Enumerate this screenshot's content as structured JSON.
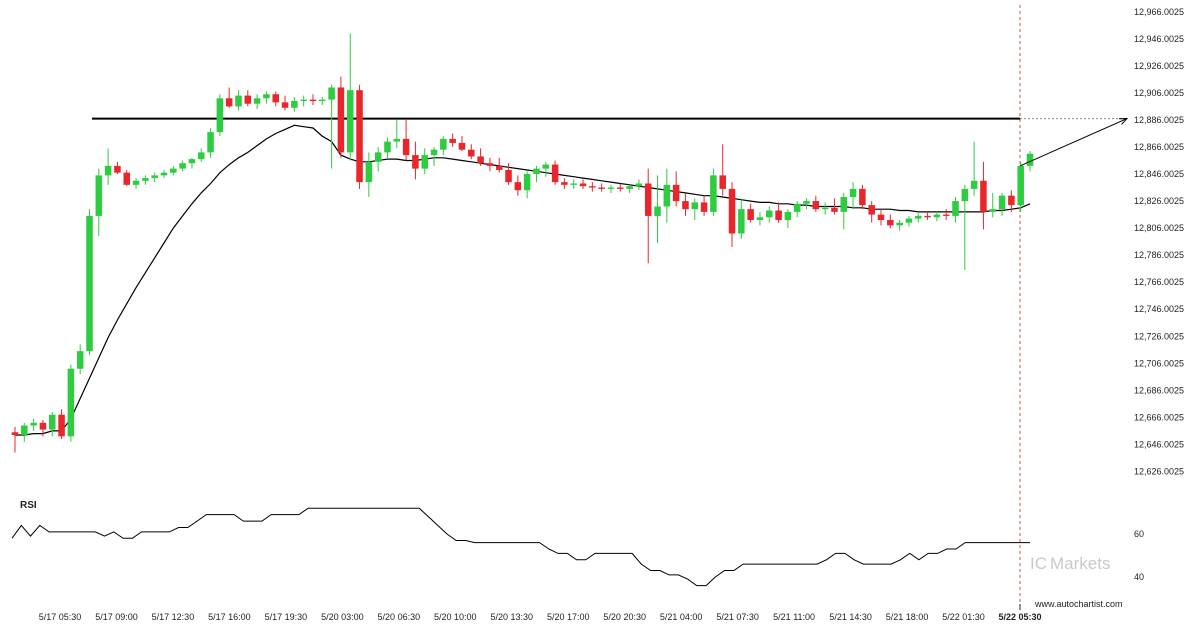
{
  "chart_data": {
    "type": "candlestick",
    "instrument_value_axis": {
      "tick_labels": [
        "12,966.0025",
        "12,946.0025",
        "12,926.0025",
        "12,906.0025",
        "12,886.0025",
        "12,866.0025",
        "12,846.0025",
        "12,826.0025",
        "12,806.0025",
        "12,786.0025",
        "12,766.0025",
        "12,746.0025",
        "12,726.0025",
        "12,706.0025",
        "12,686.0025",
        "12,666.0025",
        "12,646.0025",
        "12,626.0025"
      ],
      "ylim": [
        12616.0025,
        12971.0025
      ]
    },
    "time_axis": {
      "tick_labels": [
        "5/17 05:30",
        "5/17 09:00",
        "5/17 12:30",
        "5/17 16:00",
        "5/17 19:30",
        "5/20 03:00",
        "5/20 06:30",
        "5/20 10:00",
        "5/20 13:30",
        "5/20 17:00",
        "5/20 20:30",
        "5/21 04:00",
        "5/21 07:30",
        "5/21 11:00",
        "5/21 14:30",
        "5/21 18:00",
        "5/22 01:30",
        "5/22 05:30"
      ],
      "last_tick_bold": true
    },
    "resistance_level": 12887,
    "projection": {
      "from": 12852,
      "to": 12887
    },
    "ohlc": [
      [
        12655,
        12659,
        12640,
        12653
      ],
      [
        12653,
        12662,
        12648,
        12660
      ],
      [
        12660,
        12665,
        12656,
        12662
      ],
      [
        12662,
        12664,
        12652,
        12657
      ],
      [
        12657,
        12670,
        12652,
        12668
      ],
      [
        12668,
        12672,
        12650,
        12652
      ],
      [
        12652,
        12705,
        12648,
        12702
      ],
      [
        12702,
        12720,
        12698,
        12715
      ],
      [
        12715,
        12820,
        12712,
        12815
      ],
      [
        12815,
        12850,
        12800,
        12845
      ],
      [
        12845,
        12865,
        12838,
        12852
      ],
      [
        12852,
        12855,
        12846,
        12847
      ],
      [
        12847,
        12849,
        12837,
        12838
      ],
      [
        12838,
        12843,
        12835,
        12841
      ],
      [
        12841,
        12845,
        12838,
        12843
      ],
      [
        12843,
        12847,
        12840,
        12845
      ],
      [
        12845,
        12849,
        12843,
        12847
      ],
      [
        12847,
        12852,
        12845,
        12850
      ],
      [
        12850,
        12856,
        12848,
        12854
      ],
      [
        12854,
        12858,
        12850,
        12857
      ],
      [
        12857,
        12865,
        12855,
        12862
      ],
      [
        12862,
        12880,
        12858,
        12877
      ],
      [
        12877,
        12905,
        12874,
        12902
      ],
      [
        12902,
        12910,
        12895,
        12896
      ],
      [
        12896,
        12908,
        12893,
        12904
      ],
      [
        12904,
        12908,
        12896,
        12898
      ],
      [
        12898,
        12905,
        12894,
        12902
      ],
      [
        12902,
        12907,
        12898,
        12905
      ],
      [
        12905,
        12907,
        12896,
        12899
      ],
      [
        12899,
        12904,
        12893,
        12895
      ],
      [
        12895,
        12903,
        12892,
        12900
      ],
      [
        12900,
        12904,
        12896,
        12901
      ],
      [
        12901,
        12905,
        12897,
        12900
      ],
      [
        12900,
        12903,
        12897,
        12901
      ],
      [
        12901,
        12912,
        12850,
        12910
      ],
      [
        12910,
        12918,
        12858,
        12862
      ],
      [
        12862,
        12950,
        12856,
        12908
      ],
      [
        12908,
        12912,
        12835,
        12840
      ],
      [
        12840,
        12862,
        12829,
        12855
      ],
      [
        12855,
        12866,
        12848,
        12862
      ],
      [
        12862,
        12873,
        12857,
        12870
      ],
      [
        12870,
        12886,
        12865,
        12872
      ],
      [
        12872,
        12886,
        12856,
        12860
      ],
      [
        12860,
        12870,
        12842,
        12850
      ],
      [
        12850,
        12865,
        12846,
        12860
      ],
      [
        12860,
        12866,
        12852,
        12864
      ],
      [
        12864,
        12874,
        12860,
        12872
      ],
      [
        12872,
        12876,
        12866,
        12869
      ],
      [
        12869,
        12874,
        12863,
        12864
      ],
      [
        12864,
        12868,
        12857,
        12859
      ],
      [
        12859,
        12865,
        12852,
        12854
      ],
      [
        12854,
        12858,
        12848,
        12852
      ],
      [
        12852,
        12858,
        12847,
        12849
      ],
      [
        12849,
        12854,
        12838,
        12840
      ],
      [
        12840,
        12845,
        12830,
        12834
      ],
      [
        12834,
        12848,
        12828,
        12846
      ],
      [
        12846,
        12852,
        12840,
        12850
      ],
      [
        12850,
        12855,
        12844,
        12853
      ],
      [
        12853,
        12856,
        12838,
        12840
      ],
      [
        12840,
        12843,
        12835,
        12838
      ],
      [
        12838,
        12842,
        12835,
        12839
      ],
      [
        12839,
        12842,
        12835,
        12837
      ],
      [
        12837,
        12840,
        12833,
        12836
      ],
      [
        12836,
        12839,
        12833,
        12835
      ],
      [
        12835,
        12838,
        12832,
        12836
      ],
      [
        12836,
        12839,
        12833,
        12835
      ],
      [
        12835,
        12838,
        12832,
        12837
      ],
      [
        12837,
        12842,
        12834,
        12839
      ],
      [
        12839,
        12850,
        12780,
        12815
      ],
      [
        12815,
        12845,
        12795,
        12822
      ],
      [
        12822,
        12850,
        12810,
        12838
      ],
      [
        12838,
        12848,
        12822,
        12826
      ],
      [
        12826,
        12832,
        12815,
        12820
      ],
      [
        12820,
        12828,
        12812,
        12825
      ],
      [
        12825,
        12830,
        12815,
        12818
      ],
      [
        12818,
        12850,
        12815,
        12845
      ],
      [
        12845,
        12868,
        12830,
        12835
      ],
      [
        12835,
        12840,
        12792,
        12802
      ],
      [
        12802,
        12828,
        12798,
        12820
      ],
      [
        12820,
        12824,
        12810,
        12812
      ],
      [
        12812,
        12818,
        12808,
        12814
      ],
      [
        12814,
        12822,
        12810,
        12819
      ],
      [
        12819,
        12825,
        12810,
        12812
      ],
      [
        12812,
        12820,
        12806,
        12818
      ],
      [
        12818,
        12826,
        12814,
        12824
      ],
      [
        12824,
        12828,
        12820,
        12826
      ],
      [
        12826,
        12830,
        12818,
        12820
      ],
      [
        12820,
        12825,
        12816,
        12821
      ],
      [
        12821,
        12828,
        12816,
        12818
      ],
      [
        12818,
        12832,
        12805,
        12829
      ],
      [
        12829,
        12840,
        12820,
        12835
      ],
      [
        12835,
        12838,
        12820,
        12823
      ],
      [
        12823,
        12826,
        12810,
        12816
      ],
      [
        12816,
        12820,
        12808,
        12812
      ],
      [
        12812,
        12816,
        12806,
        12808
      ],
      [
        12808,
        12812,
        12804,
        12810
      ],
      [
        12810,
        12815,
        12807,
        12813
      ],
      [
        12813,
        12817,
        12810,
        12815
      ],
      [
        12815,
        12818,
        12812,
        12814
      ],
      [
        12814,
        12818,
        12811,
        12816
      ],
      [
        12816,
        12820,
        12812,
        12815
      ],
      [
        12815,
        12829,
        12810,
        12826
      ],
      [
        12826,
        12838,
        12775,
        12835
      ],
      [
        12835,
        12870,
        12830,
        12841
      ],
      [
        12841,
        12855,
        12805,
        12818
      ],
      [
        12818,
        12832,
        12814,
        12820
      ],
      [
        12820,
        12832,
        12815,
        12830
      ],
      [
        12830,
        12834,
        12818,
        12823
      ],
      [
        12823,
        12855,
        12818,
        12852
      ],
      [
        12852,
        12863,
        12848,
        12861
      ]
    ],
    "sma": [
      12653,
      12653,
      12654,
      12654,
      12656,
      12656,
      12665,
      12680,
      12695,
      12710,
      12725,
      12738,
      12750,
      12762,
      12773,
      12784,
      12795,
      12806,
      12815,
      12824,
      12832,
      12839,
      12847,
      12853,
      12858,
      12862,
      12867,
      12872,
      12876,
      12879,
      12882,
      12881,
      12880,
      12874,
      12870,
      12860,
      12857,
      12855,
      12855,
      12856,
      12857,
      12857,
      12856,
      12856,
      12857,
      12858,
      12858,
      12857,
      12856,
      12855,
      12854,
      12853,
      12852,
      12851,
      12850,
      12849,
      12848,
      12847,
      12846,
      12845,
      12844,
      12843,
      12842,
      12841,
      12840,
      12839,
      12838,
      12837,
      12836,
      12835,
      12834,
      12833,
      12832,
      12831,
      12830,
      12830,
      12829,
      12828,
      12827,
      12826,
      12825,
      12825,
      12824,
      12824,
      12823,
      12823,
      12822,
      12822,
      12822,
      12822,
      12821,
      12821,
      12820,
      12820,
      12820,
      12819,
      12819,
      12818,
      12818,
      12818,
      12818,
      12818,
      12818,
      12818,
      12818,
      12819,
      12819,
      12820,
      12821,
      12824
    ],
    "rsi": {
      "label": "RSI",
      "levels": [
        "60",
        "40"
      ],
      "values": [
        58,
        64,
        59,
        64,
        61,
        61,
        61,
        61,
        61,
        61,
        59,
        61,
        58,
        58,
        61,
        61,
        61,
        61,
        63,
        63,
        66,
        69,
        69,
        69,
        69,
        66,
        66,
        66,
        69,
        69,
        69,
        69,
        72,
        72,
        72,
        72,
        72,
        72,
        72,
        72,
        72,
        72,
        72,
        72,
        72,
        68,
        64,
        60,
        57,
        57,
        56,
        56,
        56,
        56,
        56,
        56,
        56,
        56,
        53,
        51,
        51,
        48,
        48,
        51,
        51,
        51,
        51,
        51,
        46,
        43,
        43,
        41,
        41,
        39,
        36,
        36,
        40,
        43,
        43,
        46,
        46,
        46,
        46,
        46,
        46,
        46,
        46,
        46,
        48,
        51,
        51,
        48,
        46,
        46,
        46,
        46,
        48,
        51,
        48,
        51,
        51,
        53,
        53,
        56,
        56,
        56,
        56,
        56,
        56,
        56,
        56
      ]
    },
    "brand": {
      "prefix": "IC",
      "name": "Markets"
    },
    "source_url": "www.autochartist.com",
    "colors": {
      "up": "#2ecc40",
      "down": "#e8262c",
      "resistance": "#000000",
      "sma": "#000000",
      "rsi": "#000000",
      "current_marker": "#d9534f",
      "axis": "#222222",
      "brand": "#c9c9c9"
    }
  }
}
